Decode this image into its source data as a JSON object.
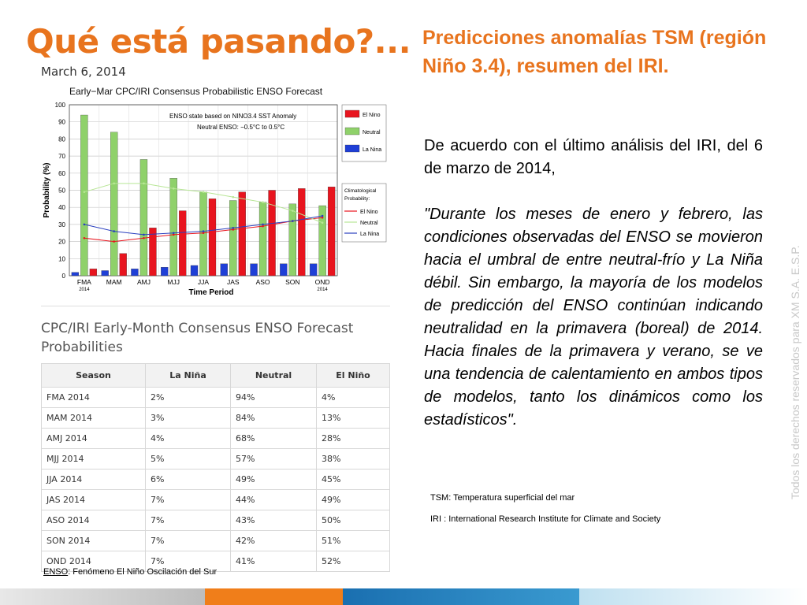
{
  "slide": {
    "title": "Qué está pasando?...",
    "date": "March 6, 2014",
    "right_title": "Predicciones anomalías TSM (región Niño 3.4), resumen del IRI.",
    "intro": "De acuerdo con el último análisis del IRI, del 6 de marzo de 2014,",
    "quote": "\"Durante los meses de enero y febrero, las condiciones observadas del ENSO se movieron hacia el umbral de entre neutral-frío y La Niña débil. Sin embargo, la mayoría de los modelos de predicción del ENSO continúan indicando neutralidad en la primavera (boreal) de 2014. Hacia finales de la primavera y verano, se ve una tendencia de calentamiento en ambos tipos de modelos, tanto los dinámicos como los estadísticos\".",
    "note_tsm": "TSM: Temperatura superficial del mar",
    "note_iri": "IRI :  International Research Institute for Climate and Society",
    "enso_abbr": "ENSO",
    "enso_def": ": Fenómeno El Niño Oscilación del Sur",
    "watermark": "Todos los derechos reservados para XM S.A. E.S.P."
  },
  "table": {
    "title": "CPC/IRI Early-Month Consensus ENSO Forecast Probabilities",
    "headers": [
      "Season",
      "La Niña",
      "Neutral",
      "El Niño"
    ],
    "rows": [
      [
        "FMA 2014",
        "2%",
        "94%",
        "4%"
      ],
      [
        "MAM 2014",
        "3%",
        "84%",
        "13%"
      ],
      [
        "AMJ 2014",
        "4%",
        "68%",
        "28%"
      ],
      [
        "MJJ 2014",
        "5%",
        "57%",
        "38%"
      ],
      [
        "JJA 2014",
        "6%",
        "49%",
        "45%"
      ],
      [
        "JAS 2014",
        "7%",
        "44%",
        "49%"
      ],
      [
        "ASO 2014",
        "7%",
        "43%",
        "50%"
      ],
      [
        "SON 2014",
        "7%",
        "42%",
        "51%"
      ],
      [
        "OND 2014",
        "7%",
        "41%",
        "52%"
      ]
    ]
  },
  "chart_data": {
    "type": "bar",
    "title": "Early−Mar CPC/IRI Consensus Probabilistic ENSO Forecast",
    "xlabel": "Time Period",
    "ylabel": "Probability (%)",
    "ylim": [
      0,
      100
    ],
    "yticks": [
      0,
      10,
      20,
      30,
      40,
      50,
      60,
      70,
      80,
      90,
      100
    ],
    "grid": true,
    "categories": [
      "FMA",
      "MAM",
      "AMJ",
      "MJJ",
      "JJA",
      "JAS",
      "ASO",
      "SON",
      "OND"
    ],
    "category_sublabels": [
      "2014",
      "",
      "",
      "",
      "",
      "",
      "",
      "",
      "2014"
    ],
    "annotation_line1": "ENSO state based on NINO3.4 SST Anomaly",
    "annotation_line2": "Neutral ENSO: −0.5°C to 0.5°C",
    "legend_placement": "right",
    "climatology_title": "Climatological Probability:",
    "series": [
      {
        "name": "La Nina",
        "color": "#1f3fd6",
        "values": [
          2,
          3,
          4,
          5,
          6,
          7,
          7,
          7,
          7
        ]
      },
      {
        "name": "Neutral",
        "color": "#8fd16a",
        "values": [
          94,
          84,
          68,
          57,
          49,
          44,
          43,
          42,
          41
        ]
      },
      {
        "name": "El Nino",
        "color": "#e8141e",
        "values": [
          4,
          13,
          28,
          38,
          45,
          49,
          50,
          51,
          52
        ]
      }
    ],
    "climatology": [
      {
        "name": "El Nino",
        "color": "#e8141e",
        "values": [
          22,
          20,
          22,
          24,
          25,
          27,
          29,
          32,
          34
        ]
      },
      {
        "name": "Neutral",
        "color": "#b8e696",
        "values": [
          49,
          54,
          54,
          51,
          49,
          46,
          43,
          38,
          31
        ]
      },
      {
        "name": "La Nina",
        "color": "#2a3fbf",
        "values": [
          30,
          26,
          24,
          25,
          26,
          28,
          30,
          32,
          35
        ]
      }
    ]
  },
  "colors": {
    "accent": "#e8741e",
    "footer_orange": "#f07e1a",
    "footer_blue": "#1a6fb0"
  }
}
